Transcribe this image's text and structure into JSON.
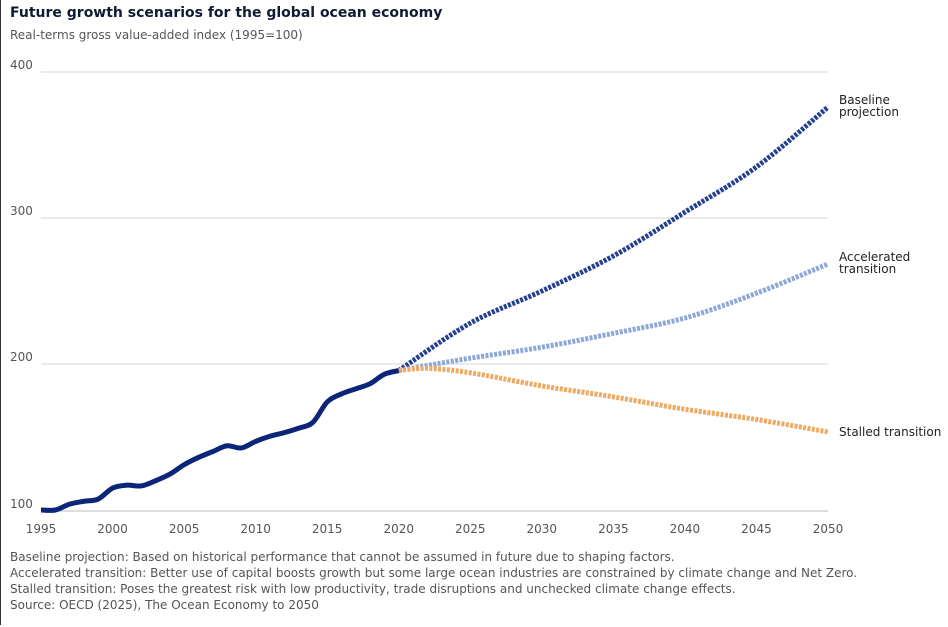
{
  "chart_data": {
    "type": "line",
    "title": "Future growth scenarios for the global ocean economy",
    "subtitle": "Real-terms gross value-added index (1995=100)",
    "xlim": [
      1995,
      2050
    ],
    "ylim": [
      100,
      400
    ],
    "x_ticks": [
      "1995",
      "2000",
      "2005",
      "2010",
      "2015",
      "2020",
      "2025",
      "2030",
      "2035",
      "2040",
      "2045",
      "2050"
    ],
    "y_ticks": [
      "100",
      "200",
      "300",
      "400"
    ],
    "grid": "horizontal",
    "legend": "direct labels at right",
    "historical": {
      "color": "#0b2579",
      "x": [
        1995,
        1996,
        1997,
        1998,
        1999,
        2000,
        2001,
        2002,
        2003,
        2004,
        2005,
        2006,
        2007,
        2008,
        2009,
        2010,
        2011,
        2012,
        2013,
        2014,
        2015,
        2016,
        2017,
        2018,
        2019,
        2020
      ],
      "y": [
        100,
        100,
        104,
        106,
        107.5,
        115,
        117,
        116.5,
        120,
        124.5,
        131,
        136,
        140,
        144,
        142.5,
        147,
        150.5,
        153,
        156,
        160,
        174,
        179.5,
        183,
        186.5,
        193,
        195.5
      ]
    },
    "series": [
      {
        "name": "Baseline projection",
        "label_lines": [
          "Baseline",
          "projection"
        ],
        "color": "#233f8f",
        "x": [
          2020,
          2025,
          2030,
          2035,
          2040,
          2045,
          2050
        ],
        "y": [
          195.5,
          228,
          250,
          274,
          304,
          335,
          376
        ]
      },
      {
        "name": "Accelerated transition",
        "label_lines": [
          "Accelerated",
          "transition"
        ],
        "color": "#8ea7d9",
        "x": [
          2020,
          2025,
          2030,
          2035,
          2040,
          2045,
          2050
        ],
        "y": [
          195.5,
          204,
          211.5,
          221,
          231.5,
          248.5,
          268.5
        ]
      },
      {
        "name": "Stalled transition",
        "label_lines": [
          "Stalled transition"
        ],
        "color": "#eea962",
        "x": [
          2020,
          2022,
          2025,
          2030,
          2035,
          2040,
          2045,
          2050
        ],
        "y": [
          195.5,
          197,
          194,
          185,
          177.5,
          169,
          162,
          153.5
        ]
      }
    ]
  },
  "notes": [
    "Baseline projection: Based on historical performance that cannot be assumed in future due to shaping factors.",
    "Accelerated transition: Better use of capital boosts growth but some large ocean industries are constrained by climate change and Net Zero.",
    "Stalled transition: Poses the greatest risk with low productivity, trade disruptions and unchecked climate change effects.",
    "Source: OECD (2025), The Ocean Economy to 2050"
  ]
}
